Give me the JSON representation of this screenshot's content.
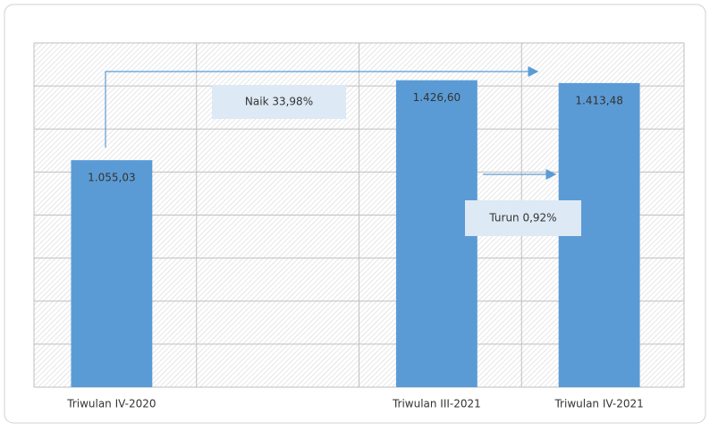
{
  "chart_data": {
    "type": "bar",
    "categories": [
      "Triwulan IV-2020",
      null,
      "Triwulan III-2021",
      "Triwulan IV-2021"
    ],
    "values": [
      1055.03,
      null,
      1426.6,
      1413.48
    ],
    "value_labels": [
      "1.055,03",
      null,
      "1.426,60",
      "1.413,48"
    ],
    "color": "#5b9bd5",
    "ylim": [
      0,
      1600
    ],
    "yticks": [
      0,
      200,
      400,
      600,
      800,
      1000,
      1200,
      1400,
      1600
    ],
    "grid": true,
    "annotations": [
      "Naik 33,98%",
      "Turun 0,92%"
    ]
  }
}
